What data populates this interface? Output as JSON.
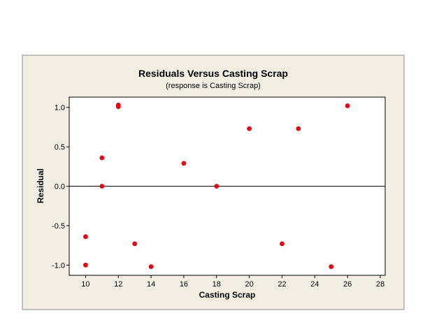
{
  "colors": {
    "panel_background": "#F2EEE3",
    "plot_background": "#FFFFFF",
    "point_color": "#E30613",
    "axis_color": "#000000"
  },
  "chart_data": {
    "type": "scatter",
    "title": "Residuals Versus Casting Scrap",
    "subtitle": "(response is Casting Scrap)",
    "xlabel": "Casting Scrap",
    "ylabel": "Residual",
    "xlim": [
      9,
      28.3
    ],
    "ylim": [
      -1.13,
      1.13
    ],
    "xticks": [
      10,
      12,
      14,
      16,
      18,
      20,
      22,
      24,
      26,
      28
    ],
    "xtick_labels": [
      "10",
      "12",
      "14",
      "16",
      "18",
      "20",
      "22",
      "24",
      "26",
      "28"
    ],
    "yticks": [
      1.0,
      0.5,
      0.0,
      -0.5,
      -1.0
    ],
    "ytick_labels": [
      "1.0",
      "0.5",
      "0.0",
      "-0.5",
      "-1.0"
    ],
    "reference_line_y": 0,
    "grid": false,
    "points": [
      {
        "x": 10,
        "y": -0.64
      },
      {
        "x": 10,
        "y": -1.0
      },
      {
        "x": 11,
        "y": 0.36
      },
      {
        "x": 11,
        "y": 0.0
      },
      {
        "x": 12,
        "y": 1.03
      },
      {
        "x": 12,
        "y": 1.01
      },
      {
        "x": 13,
        "y": -0.73
      },
      {
        "x": 14,
        "y": -1.02
      },
      {
        "x": 16,
        "y": 0.29
      },
      {
        "x": 18,
        "y": 0.0
      },
      {
        "x": 20,
        "y": 0.73
      },
      {
        "x": 22,
        "y": -0.73
      },
      {
        "x": 23,
        "y": 0.73
      },
      {
        "x": 25,
        "y": -1.02
      },
      {
        "x": 26,
        "y": 1.02
      }
    ]
  }
}
